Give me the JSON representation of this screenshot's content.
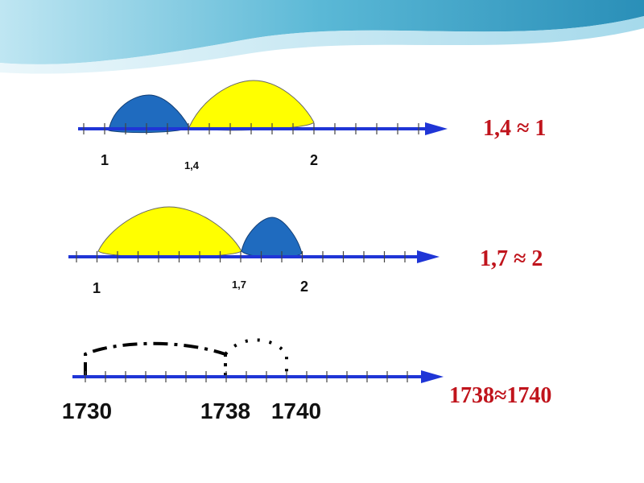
{
  "lines": [
    {
      "labels": [
        "1",
        "1,4",
        "2"
      ],
      "result": "1,4 ≈ 1"
    },
    {
      "labels": [
        "1",
        "1,7",
        "2"
      ],
      "result": "1,7 ≈ 2"
    },
    {
      "labels": [
        "1730",
        "1738",
        "1740"
      ],
      "result": "1738≈1740"
    }
  ]
}
